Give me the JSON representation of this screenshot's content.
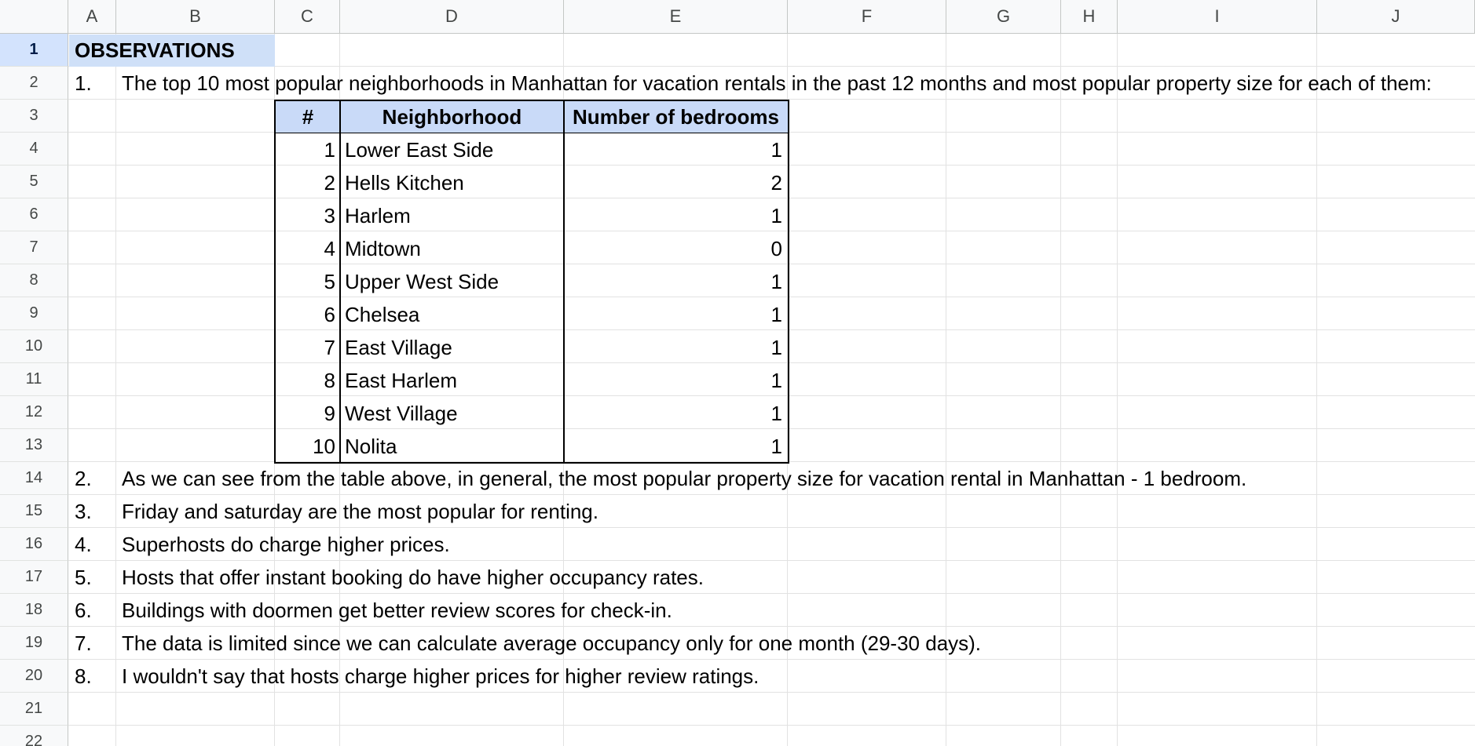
{
  "columns": [
    "A",
    "B",
    "C",
    "D",
    "E",
    "F",
    "G",
    "H",
    "I",
    "J"
  ],
  "rows": [
    "1",
    "2",
    "3",
    "4",
    "5",
    "6",
    "7",
    "8",
    "9",
    "10",
    "11",
    "12",
    "13",
    "14",
    "15",
    "16",
    "17",
    "18",
    "19",
    "20",
    "21",
    "22"
  ],
  "title": "OBSERVATIONS",
  "intro": {
    "number": "1.",
    "text": "The top 10 most popular neighborhoods in Manhattan for vacation rentals in the past 12 months and most popular property size for each of them:"
  },
  "table": {
    "headers": [
      "#",
      "Neighborhood",
      "Number of bedrooms"
    ],
    "rows": [
      {
        "rank": "1",
        "neighborhood": "Lower East Side",
        "bedrooms": "1"
      },
      {
        "rank": "2",
        "neighborhood": "Hells Kitchen",
        "bedrooms": "2"
      },
      {
        "rank": "3",
        "neighborhood": "Harlem",
        "bedrooms": "1"
      },
      {
        "rank": "4",
        "neighborhood": "Midtown",
        "bedrooms": "0"
      },
      {
        "rank": "5",
        "neighborhood": "Upper West Side",
        "bedrooms": "1"
      },
      {
        "rank": "6",
        "neighborhood": "Chelsea",
        "bedrooms": "1"
      },
      {
        "rank": "7",
        "neighborhood": "East Village",
        "bedrooms": "1"
      },
      {
        "rank": "8",
        "neighborhood": "East Harlem",
        "bedrooms": "1"
      },
      {
        "rank": "9",
        "neighborhood": "West Village",
        "bedrooms": "1"
      },
      {
        "rank": "10",
        "neighborhood": "Nolita",
        "bedrooms": "1"
      }
    ]
  },
  "observations": [
    {
      "number": "2.",
      "text": "As we can see from the table above, in general, the most popular property size for vacation rental in Manhattan - 1 bedroom."
    },
    {
      "number": "3.",
      "text": "Friday and saturday are the most popular for renting."
    },
    {
      "number": "4.",
      "text": "Superhosts do charge higher prices."
    },
    {
      "number": "5.",
      "text": "Hosts that offer instant booking do have higher occupancy rates."
    },
    {
      "number": "6.",
      "text": "Buildings with doormen get better review scores for check-in."
    },
    {
      "number": "7.",
      "text": "The data is limited since we can calculate average occupancy only for one month (29-30 days)."
    },
    {
      "number": "8.",
      "text": "I wouldn't say that hosts charge higher prices for higher review ratings."
    }
  ],
  "colors": {
    "header_bg": "#f8f9fa",
    "selected_row_header": "#d3e3fd",
    "observations_fill": "#cfe0f8",
    "table_header_fill": "#c9daf8",
    "gridline": "#e2e2e2"
  }
}
